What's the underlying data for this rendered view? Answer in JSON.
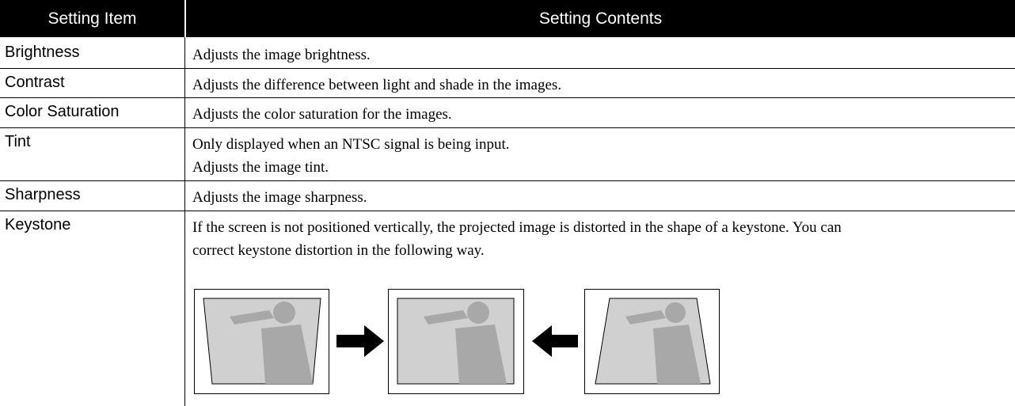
{
  "header": {
    "columns": [
      "Setting Item",
      "Setting Contents"
    ]
  },
  "table": {
    "rows": [
      {
        "item": "Brightness",
        "contents": [
          "Adjusts the image brightness."
        ]
      },
      {
        "item": "Contrast",
        "contents": [
          "Adjusts the difference between light and shade in the images."
        ]
      },
      {
        "item": "Color Saturation",
        "contents": [
          "Adjusts the color saturation for the images."
        ]
      },
      {
        "item": "Tint",
        "contents": [
          "Only displayed when an NTSC signal is being input.",
          "Adjusts the image tint."
        ]
      },
      {
        "item": "Sharpness",
        "contents": [
          "Adjusts the image sharpness."
        ]
      },
      {
        "item": "Keystone",
        "contents": [
          "If the screen is not positioned vertically, the projected image is distorted in the shape of a keystone. You can correct keystone distortion in the following way."
        ]
      }
    ]
  }
}
